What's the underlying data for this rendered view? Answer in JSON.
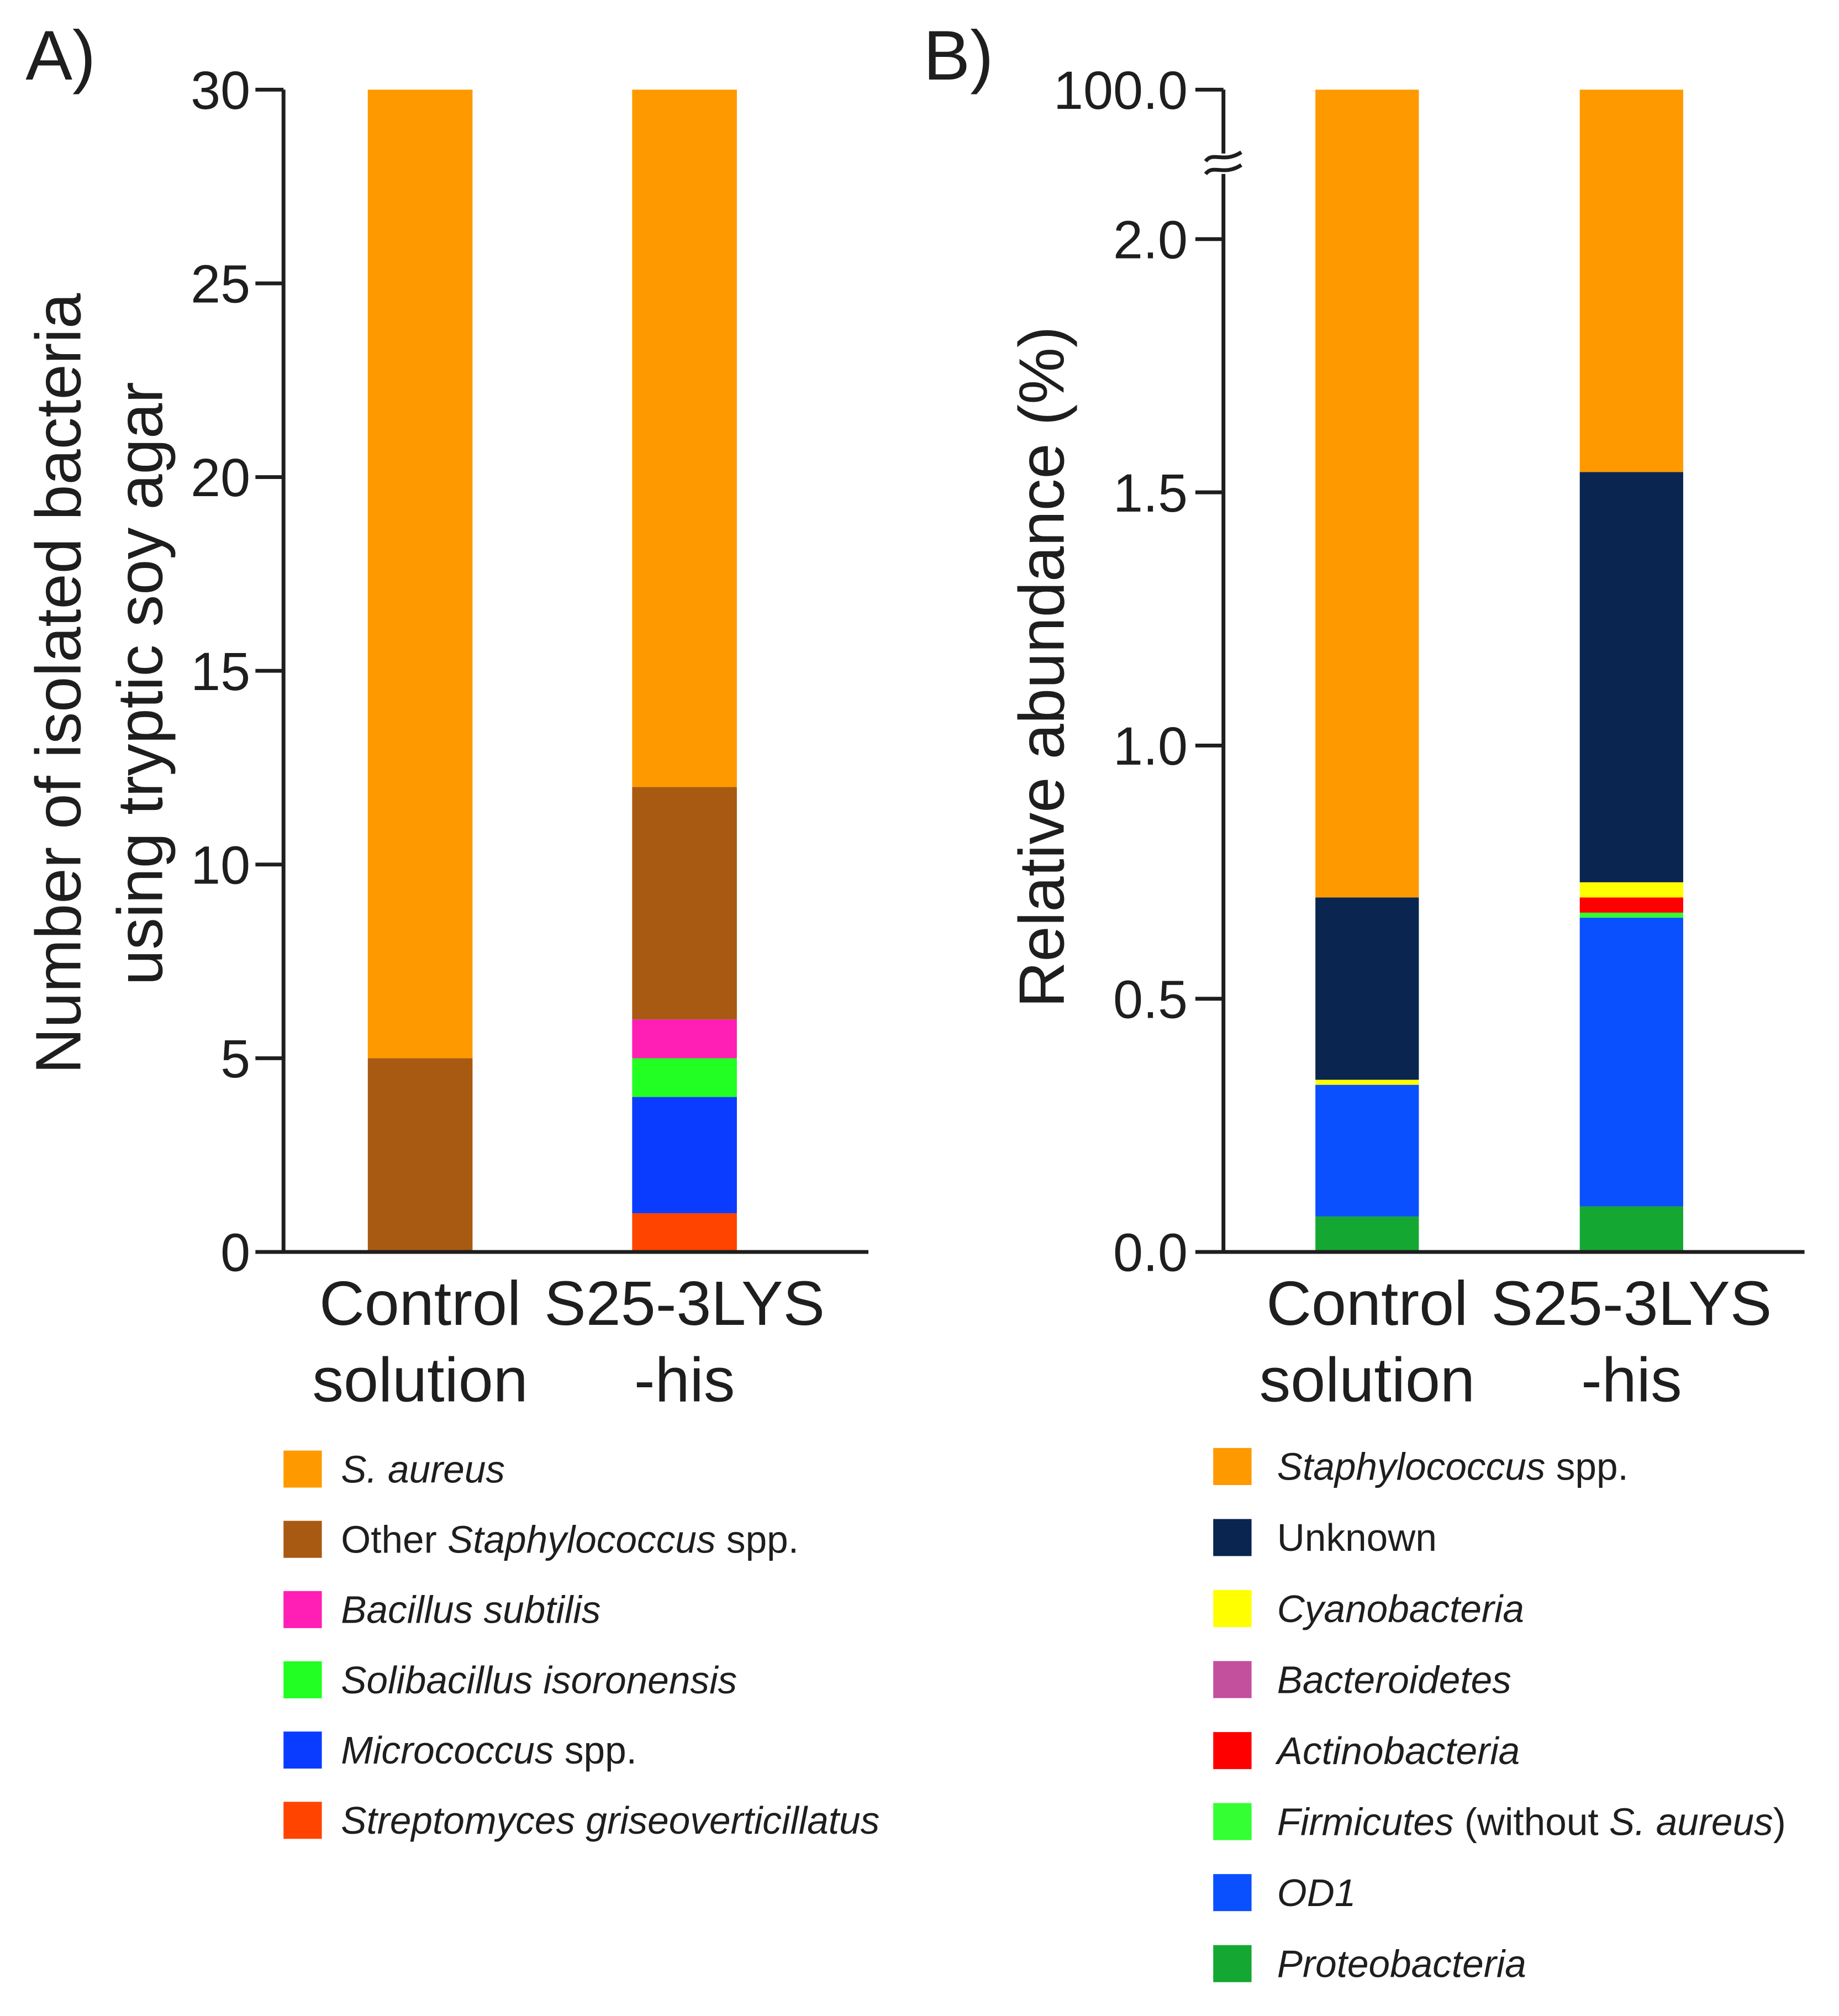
{
  "chart_data": [
    {
      "panel_label": "A)",
      "type": "bar",
      "stacked": true,
      "categories": [
        [
          "Control",
          "solution"
        ],
        [
          "S25-3LYS",
          "-his"
        ]
      ],
      "ylabel": [
        "Number of isolated bacteria",
        "using tryptic soy agar"
      ],
      "ylim": [
        0,
        30
      ],
      "yticks": [
        0,
        5,
        10,
        15,
        20,
        25,
        30
      ],
      "ytick_labels": [
        "0",
        "5",
        "10",
        "15",
        "20",
        "25",
        "30"
      ],
      "series": [
        {
          "label_parts": [
            {
              "text": "S. aureus",
              "italic": true
            }
          ],
          "color": "#FF9900",
          "values": [
            25,
            18
          ]
        },
        {
          "label_parts": [
            {
              "text": "Other ",
              "italic": false
            },
            {
              "text": "Staphylococcus",
              "italic": true
            },
            {
              "text": " spp.",
              "italic": false
            }
          ],
          "color": "#A85A12",
          "values": [
            5,
            6
          ]
        },
        {
          "label_parts": [
            {
              "text": "Bacillus subtilis",
              "italic": true
            }
          ],
          "color": "#FF1FB4",
          "values": [
            0,
            1
          ]
        },
        {
          "label_parts": [
            {
              "text": "Solibacillus isoronensis",
              "italic": true
            }
          ],
          "color": "#22FF22",
          "values": [
            0,
            1
          ]
        },
        {
          "label_parts": [
            {
              "text": "Micrococcus",
              "italic": true
            },
            {
              "text": " spp.",
              "italic": false
            }
          ],
          "color": "#0A3CFF",
          "values": [
            0,
            3
          ]
        },
        {
          "label_parts": [
            {
              "text": "Streptomyces griseoverticillatus",
              "italic": true
            }
          ],
          "color": "#FF4400",
          "values": [
            0,
            1
          ]
        }
      ]
    },
    {
      "panel_label": "B)",
      "type": "bar",
      "stacked": true,
      "categories": [
        [
          "Control",
          "solution"
        ],
        [
          "S25-3LYS",
          "-his"
        ]
      ],
      "ylabel": [
        "Relative abundance (%)"
      ],
      "ylim": [
        0,
        100
      ],
      "y_break": [
        2.0,
        100.0
      ],
      "yticks": [
        0,
        0.5,
        1.0,
        1.5,
        2.0,
        100.0
      ],
      "ytick_labels": [
        "0.0",
        "0.5",
        "1.0",
        "1.5",
        "2.0",
        "100.0"
      ],
      "series": [
        {
          "label_parts": [
            {
              "text": "Staphylococcus",
              "italic": true
            },
            {
              "text": " spp.",
              "italic": false
            }
          ],
          "color": "#FF9900",
          "values": [
            99.3,
            98.46
          ]
        },
        {
          "label_parts": [
            {
              "text": "Unknown",
              "italic": false
            }
          ],
          "color": "#0A2550",
          "values": [
            0.36,
            0.81
          ]
        },
        {
          "label_parts": [
            {
              "text": "Cyanobacteria",
              "italic": true
            }
          ],
          "color": "#FFFF00",
          "values": [
            0.01,
            0.03
          ]
        },
        {
          "label_parts": [
            {
              "text": "Bacteroidetes",
              "italic": true
            }
          ],
          "color": "#C2509D",
          "values": [
            0.0,
            0.0
          ]
        },
        {
          "label_parts": [
            {
              "text": "Actinobacteria",
              "italic": true
            }
          ],
          "color": "#FF0000",
          "values": [
            0.0,
            0.03
          ]
        },
        {
          "label_parts": [
            {
              "text": "Firmicutes",
              "italic": true
            },
            {
              "text": " (without ",
              "italic": false
            },
            {
              "text": "S. aureus",
              "italic": true
            },
            {
              "text": ")",
              "italic": false
            }
          ],
          "color": "#33FF33",
          "values": [
            0.0,
            0.01
          ]
        },
        {
          "label_parts": [
            {
              "text": "OD1",
              "italic": true
            }
          ],
          "color": "#0A50FF",
          "values": [
            0.26,
            0.57
          ]
        },
        {
          "label_parts": [
            {
              "text": "Proteobacteria",
              "italic": true
            }
          ],
          "color": "#14A832",
          "values": [
            0.07,
            0.09
          ]
        }
      ]
    }
  ]
}
